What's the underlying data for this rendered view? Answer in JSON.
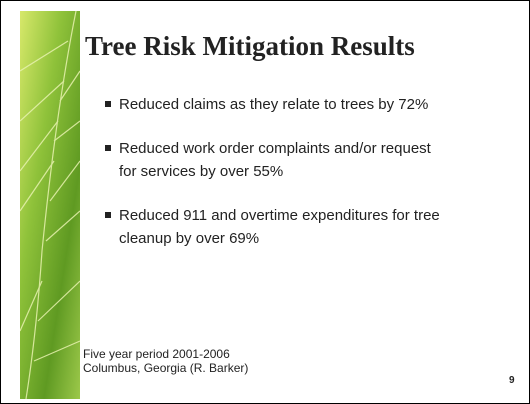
{
  "slide": {
    "title": "Tree Risk Mitigation Results",
    "bullets": [
      [
        "Reduced claims as they relate to trees by 72%"
      ],
      [
        "Reduced work order complaints and/or request",
        "for services by over 55%"
      ],
      [
        "Reduced 911 and overtime expenditures for tree",
        "cleanup by over 69%"
      ]
    ],
    "footnote": [
      "Five year period 2001-2006",
      "Columbus, Georgia (R. Barker)"
    ],
    "page_number": "9"
  }
}
